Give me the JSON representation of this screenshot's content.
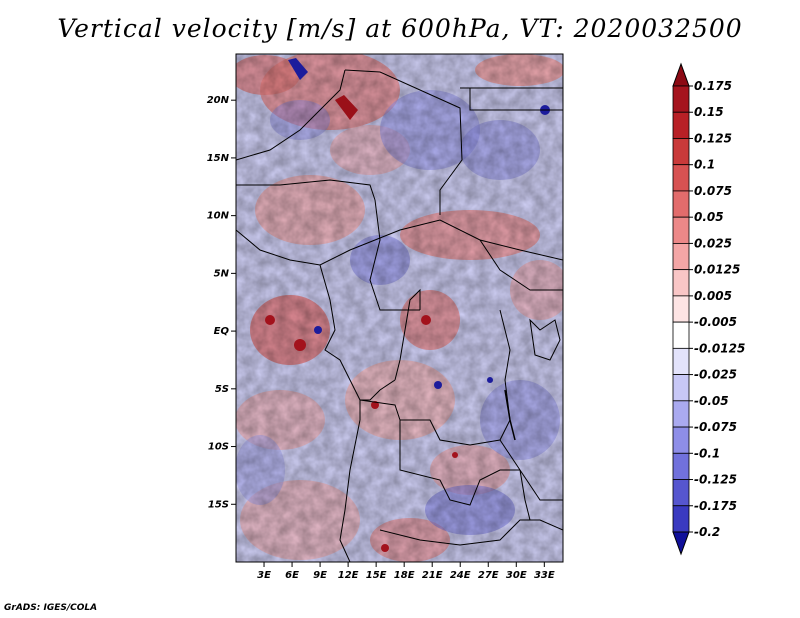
{
  "title": "Vertical velocity [m/s] at 600hPa, VT: 2020032500",
  "credit": "GrADS: IGES/COLA",
  "map": {
    "variable": "Vertical velocity",
    "units": "m/s",
    "level": "600hPa",
    "valid_time": "2020032500",
    "lon_range": [
      0,
      35
    ],
    "lat_range": [
      -20,
      24
    ],
    "lat_ticks": [
      {
        "value": 20,
        "label": "20N"
      },
      {
        "value": 15,
        "label": "15N"
      },
      {
        "value": 10,
        "label": "10N"
      },
      {
        "value": 5,
        "label": "5N"
      },
      {
        "value": 0,
        "label": "EQ"
      },
      {
        "value": -5,
        "label": "5S"
      },
      {
        "value": -10,
        "label": "10S"
      },
      {
        "value": -15,
        "label": "15S"
      }
    ],
    "lon_ticks": [
      {
        "value": 3,
        "label": "3E"
      },
      {
        "value": 6,
        "label": "6E"
      },
      {
        "value": 9,
        "label": "9E"
      },
      {
        "value": 12,
        "label": "12E"
      },
      {
        "value": 15,
        "label": "15E"
      },
      {
        "value": 18,
        "label": "18E"
      },
      {
        "value": 21,
        "label": "21E"
      },
      {
        "value": 24,
        "label": "24E"
      },
      {
        "value": 27,
        "label": "27E"
      },
      {
        "value": 30,
        "label": "30E"
      },
      {
        "value": 33,
        "label": "33E"
      }
    ]
  },
  "colorbar": {
    "levels": [
      {
        "label": "0.175",
        "color": "#a5141e"
      },
      {
        "label": "0.15",
        "color": "#b82026"
      },
      {
        "label": "0.125",
        "color": "#c93a3a"
      },
      {
        "label": "0.1",
        "color": "#d75252"
      },
      {
        "label": "0.075",
        "color": "#e26c6c"
      },
      {
        "label": "0.05",
        "color": "#ec8888"
      },
      {
        "label": "0.025",
        "color": "#f4a6a6"
      },
      {
        "label": "0.0125",
        "color": "#f9c6c6"
      },
      {
        "label": "0.005",
        "color": "#fde4e4"
      },
      {
        "label": "-0.005",
        "color": "#ffffff"
      },
      {
        "label": "-0.0125",
        "color": "#e3e3fb"
      },
      {
        "label": "-0.025",
        "color": "#c8c8f6"
      },
      {
        "label": "-0.05",
        "color": "#aaaaf0"
      },
      {
        "label": "-0.075",
        "color": "#8e8ee8"
      },
      {
        "label": "-0.1",
        "color": "#7171dc"
      },
      {
        "label": "-0.125",
        "color": "#5656cf"
      },
      {
        "label": "-0.175",
        "color": "#3a3ac0"
      },
      {
        "label": "-0.2",
        "color": "#2222ae"
      }
    ],
    "top_arrow_color": "#8c0a14",
    "bottom_arrow_color": "#10109a",
    "mid_color": "#ffffff"
  }
}
